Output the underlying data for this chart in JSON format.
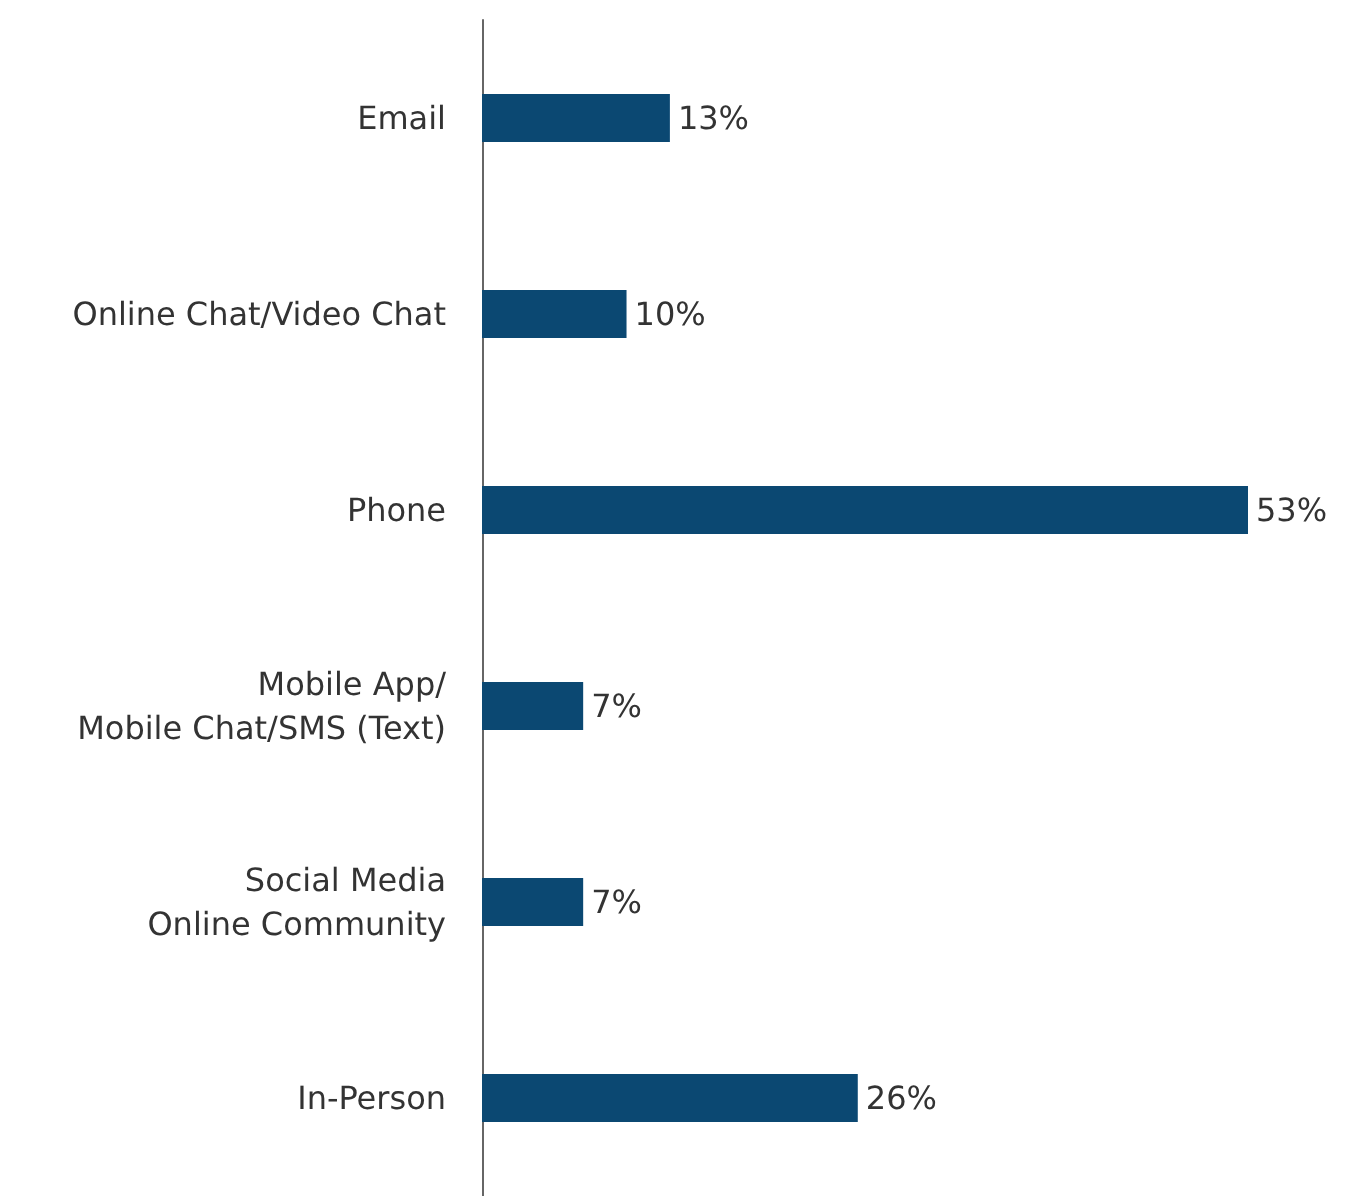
{
  "chart_data": {
    "type": "bar",
    "orientation": "horizontal",
    "categories": [
      "Email",
      "Online Chat/Video Chat",
      "Phone",
      "Mobile App/\nMobile Chat/SMS (Text)",
      "Social Media\nOnline Community",
      "In-Person"
    ],
    "values": [
      13,
      10,
      53,
      7,
      7,
      26
    ],
    "value_labels": [
      "13%",
      "10%",
      "53%",
      "7%",
      "7%",
      "26%"
    ],
    "color": "#0b4872"
  }
}
